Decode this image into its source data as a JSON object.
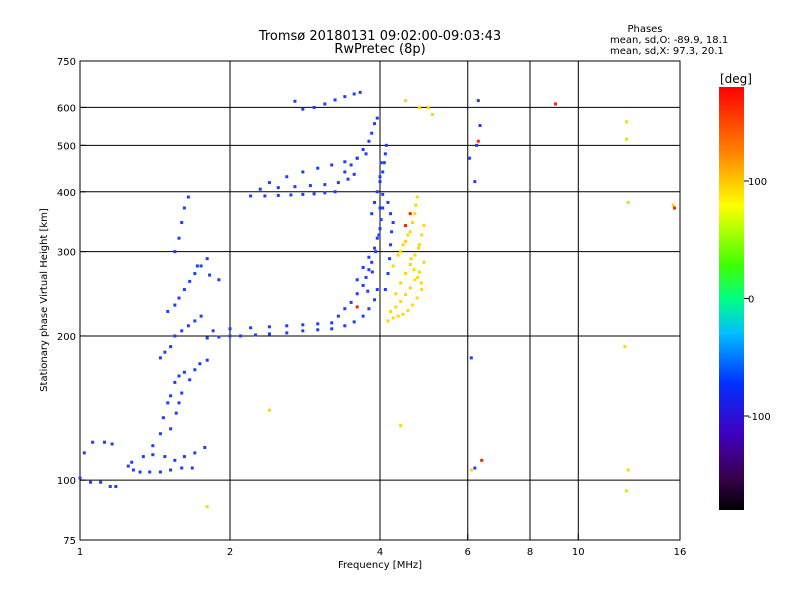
{
  "chart_data": {
    "type": "scatter",
    "title": "Tromsø 20180131 09:02:00-09:03:43",
    "subtitle": "RwPretec (8p)",
    "xlabel": "Frequency [MHz]",
    "ylabel": "Stationary phase Virtual Height [km]",
    "xscale": "log",
    "yscale": "log",
    "xlim": [
      1,
      16
    ],
    "ylim": [
      75,
      750
    ],
    "grid": true,
    "x_ticks": [
      {
        "value": 1,
        "label": "1"
      },
      {
        "value": 2,
        "label": "2"
      },
      {
        "value": 4,
        "label": "4"
      },
      {
        "value": 6,
        "label": "6"
      },
      {
        "value": 8,
        "label": "8"
      },
      {
        "value": 10,
        "label": "10"
      },
      {
        "value": 16,
        "label": "16"
      }
    ],
    "x_grid": [
      2,
      4,
      6,
      8,
      10
    ],
    "y_ticks": [
      {
        "value": 75,
        "label": "75"
      },
      {
        "value": 100,
        "label": "100"
      },
      {
        "value": 200,
        "label": "200"
      },
      {
        "value": 300,
        "label": "300"
      },
      {
        "value": 400,
        "label": "400"
      },
      {
        "value": 500,
        "label": "500"
      },
      {
        "value": 600,
        "label": "600"
      },
      {
        "value": 750,
        "label": "750"
      }
    ],
    "y_grid": [
      100,
      200,
      300,
      400,
      500,
      600
    ],
    "phases_box": {
      "heading": "Phases",
      "line_o": "mean, sd,O: -89.9, 18.1",
      "line_x": "mean, sd,X:  97.3, 20.1"
    },
    "colorbar": {
      "label": "[deg]",
      "range": [
        -180,
        180
      ],
      "ticks": [
        {
          "value": 100,
          "label": "100"
        },
        {
          "value": 0,
          "label": "0"
        },
        {
          "value": -100,
          "label": "-100"
        }
      ]
    },
    "series": [
      {
        "mode": "O",
        "phase_deg": -90,
        "color_hint": "#1e3cff",
        "points": [
          [
            1.0,
            101
          ],
          [
            1.05,
            99
          ],
          [
            1.1,
            99
          ],
          [
            1.15,
            97
          ],
          [
            1.18,
            97
          ],
          [
            1.02,
            114
          ],
          [
            1.06,
            120
          ],
          [
            1.12,
            120
          ],
          [
            1.16,
            119
          ],
          [
            1.25,
            107
          ],
          [
            1.28,
            105
          ],
          [
            1.32,
            104
          ],
          [
            1.38,
            104
          ],
          [
            1.45,
            104
          ],
          [
            1.52,
            105
          ],
          [
            1.6,
            106
          ],
          [
            1.68,
            106
          ],
          [
            1.27,
            109
          ],
          [
            1.34,
            112
          ],
          [
            1.4,
            113
          ],
          [
            1.48,
            112
          ],
          [
            1.55,
            110
          ],
          [
            1.62,
            112
          ],
          [
            1.7,
            114
          ],
          [
            1.78,
            117
          ],
          [
            1.4,
            118
          ],
          [
            1.45,
            125
          ],
          [
            1.47,
            135
          ],
          [
            1.5,
            145
          ],
          [
            1.52,
            150
          ],
          [
            1.55,
            160
          ],
          [
            1.58,
            165
          ],
          [
            1.62,
            168
          ],
          [
            1.52,
            128
          ],
          [
            1.56,
            138
          ],
          [
            1.58,
            145
          ],
          [
            1.6,
            152
          ],
          [
            1.66,
            162
          ],
          [
            1.7,
            170
          ],
          [
            1.74,
            175
          ],
          [
            1.8,
            178
          ],
          [
            1.45,
            180
          ],
          [
            1.48,
            185
          ],
          [
            1.52,
            190
          ],
          [
            1.55,
            200
          ],
          [
            1.6,
            205
          ],
          [
            1.65,
            210
          ],
          [
            1.7,
            215
          ],
          [
            1.75,
            220
          ],
          [
            1.5,
            225
          ],
          [
            1.55,
            232
          ],
          [
            1.58,
            240
          ],
          [
            1.62,
            250
          ],
          [
            1.66,
            260
          ],
          [
            1.7,
            270
          ],
          [
            1.75,
            280
          ],
          [
            1.8,
            290
          ],
          [
            1.55,
            300
          ],
          [
            1.58,
            320
          ],
          [
            1.6,
            345
          ],
          [
            1.62,
            370
          ],
          [
            1.65,
            390
          ],
          [
            1.72,
            280
          ],
          [
            1.82,
            268
          ],
          [
            1.9,
            262
          ],
          [
            1.8,
            198
          ],
          [
            1.9,
            199
          ],
          [
            2.0,
            200
          ],
          [
            2.1,
            200
          ],
          [
            2.25,
            201
          ],
          [
            2.4,
            202
          ],
          [
            2.6,
            203
          ],
          [
            2.8,
            205
          ],
          [
            1.85,
            205
          ],
          [
            2.0,
            207
          ],
          [
            2.2,
            208
          ],
          [
            2.4,
            209
          ],
          [
            2.6,
            210
          ],
          [
            2.8,
            211
          ],
          [
            3.0,
            212
          ],
          [
            3.2,
            213
          ],
          [
            3.0,
            206
          ],
          [
            3.2,
            207
          ],
          [
            3.4,
            210
          ],
          [
            3.55,
            214
          ],
          [
            3.7,
            220
          ],
          [
            3.8,
            228
          ],
          [
            3.9,
            238
          ],
          [
            3.95,
            250
          ],
          [
            3.3,
            220
          ],
          [
            3.4,
            228
          ],
          [
            3.5,
            235
          ],
          [
            3.6,
            245
          ],
          [
            3.7,
            255
          ],
          [
            3.75,
            265
          ],
          [
            3.8,
            275
          ],
          [
            3.85,
            285
          ],
          [
            3.6,
            262
          ],
          [
            3.7,
            278
          ],
          [
            3.8,
            292
          ],
          [
            3.9,
            305
          ],
          [
            3.95,
            320
          ],
          [
            4.0,
            335
          ],
          [
            4.02,
            350
          ],
          [
            4.05,
            370
          ],
          [
            3.85,
            360
          ],
          [
            3.9,
            380
          ],
          [
            3.95,
            400
          ],
          [
            4.0,
            420
          ],
          [
            4.05,
            440
          ],
          [
            4.08,
            460
          ],
          [
            4.1,
            480
          ],
          [
            4.12,
            500
          ],
          [
            4.1,
            250
          ],
          [
            4.15,
            270
          ],
          [
            4.18,
            290
          ],
          [
            4.2,
            310
          ],
          [
            4.22,
            330
          ],
          [
            4.25,
            345
          ],
          [
            4.2,
            360
          ],
          [
            4.15,
            380
          ],
          [
            2.2,
            392
          ],
          [
            2.35,
            392
          ],
          [
            2.5,
            393
          ],
          [
            2.65,
            394
          ],
          [
            2.8,
            395
          ],
          [
            2.95,
            396
          ],
          [
            3.1,
            398
          ],
          [
            3.25,
            400
          ],
          [
            2.3,
            405
          ],
          [
            2.5,
            408
          ],
          [
            2.7,
            410
          ],
          [
            2.9,
            412
          ],
          [
            3.1,
            414
          ],
          [
            3.3,
            418
          ],
          [
            3.45,
            425
          ],
          [
            3.55,
            435
          ],
          [
            3.4,
            440
          ],
          [
            3.5,
            455
          ],
          [
            3.6,
            470
          ],
          [
            3.7,
            490
          ],
          [
            3.8,
            510
          ],
          [
            3.85,
            530
          ],
          [
            3.9,
            555
          ],
          [
            3.95,
            570
          ],
          [
            2.4,
            418
          ],
          [
            2.6,
            430
          ],
          [
            2.8,
            440
          ],
          [
            3.0,
            448
          ],
          [
            3.2,
            455
          ],
          [
            3.4,
            462
          ],
          [
            3.6,
            470
          ],
          [
            3.75,
            480
          ],
          [
            2.8,
            595
          ],
          [
            2.95,
            600
          ],
          [
            3.1,
            610
          ],
          [
            3.25,
            622
          ],
          [
            3.4,
            632
          ],
          [
            3.55,
            640
          ],
          [
            3.65,
            645
          ],
          [
            2.7,
            618
          ],
          [
            4.0,
            430
          ],
          [
            4.02,
            460
          ],
          [
            4.05,
            395
          ],
          [
            4.0,
            370
          ],
          [
            3.98,
            325
          ],
          [
            3.92,
            300
          ],
          [
            3.86,
            272
          ],
          [
            3.78,
            248
          ],
          [
            6.2,
            420
          ],
          [
            6.25,
            500
          ],
          [
            6.3,
            620
          ],
          [
            6.35,
            550
          ],
          [
            6.2,
            106
          ],
          [
            6.1,
            180
          ],
          [
            6.05,
            470
          ]
        ]
      },
      {
        "mode": "X",
        "phase_deg": 100,
        "color_hint": "#ffd800",
        "points": [
          [
            4.15,
            215
          ],
          [
            4.25,
            218
          ],
          [
            4.35,
            220
          ],
          [
            4.45,
            222
          ],
          [
            4.55,
            226
          ],
          [
            4.65,
            232
          ],
          [
            4.75,
            240
          ],
          [
            4.85,
            250
          ],
          [
            4.2,
            225
          ],
          [
            4.3,
            230
          ],
          [
            4.4,
            236
          ],
          [
            4.5,
            244
          ],
          [
            4.6,
            252
          ],
          [
            4.7,
            262
          ],
          [
            4.8,
            272
          ],
          [
            4.9,
            285
          ],
          [
            4.3,
            245
          ],
          [
            4.4,
            258
          ],
          [
            4.5,
            270
          ],
          [
            4.6,
            282
          ],
          [
            4.7,
            295
          ],
          [
            4.8,
            310
          ],
          [
            4.85,
            325
          ],
          [
            4.9,
            340
          ],
          [
            4.4,
            300
          ],
          [
            4.5,
            315
          ],
          [
            4.6,
            330
          ],
          [
            4.65,
            345
          ],
          [
            4.7,
            360
          ],
          [
            4.72,
            375
          ],
          [
            4.75,
            390
          ],
          [
            4.78,
            305
          ],
          [
            4.25,
            280
          ],
          [
            4.35,
            295
          ],
          [
            4.45,
            310
          ],
          [
            4.55,
            325
          ],
          [
            4.62,
            290
          ],
          [
            4.68,
            275
          ],
          [
            4.76,
            265
          ],
          [
            4.84,
            258
          ],
          [
            4.5,
            620
          ],
          [
            4.8,
            600
          ],
          [
            5.0,
            600
          ],
          [
            5.1,
            580
          ],
          [
            12.5,
            515
          ],
          [
            12.5,
            560
          ],
          [
            12.6,
            380
          ],
          [
            12.4,
            190
          ],
          [
            12.6,
            105
          ],
          [
            12.5,
            95
          ],
          [
            1.8,
            88
          ],
          [
            2.4,
            140
          ],
          [
            4.4,
            130
          ],
          [
            15.5,
            375
          ],
          [
            6.1,
            105
          ]
        ]
      },
      {
        "mode": "other",
        "phase_deg": 170,
        "color_hint": "#ff2000",
        "points": [
          [
            9.0,
            610
          ],
          [
            6.3,
            510
          ],
          [
            6.4,
            110
          ],
          [
            4.5,
            340
          ],
          [
            4.6,
            360
          ],
          [
            15.6,
            370
          ],
          [
            3.6,
            230
          ]
        ]
      }
    ]
  }
}
